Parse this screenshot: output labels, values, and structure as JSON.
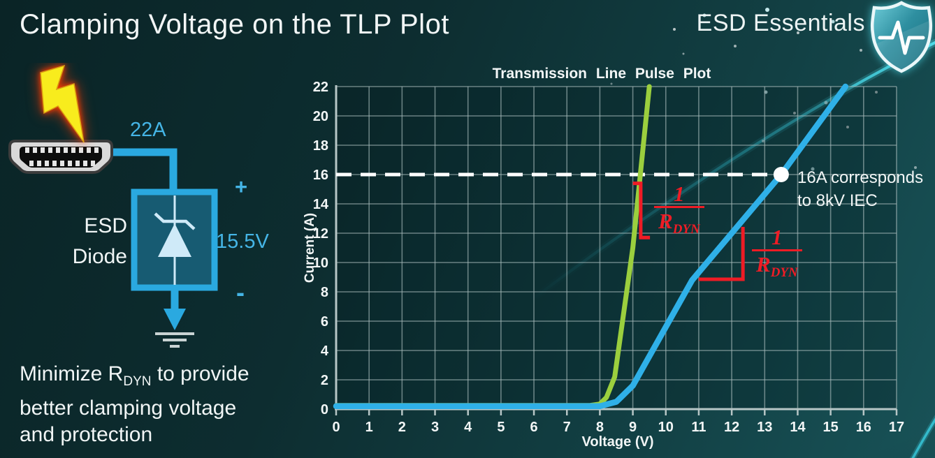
{
  "header": {
    "title": "Clamping Voltage on the TLP Plot",
    "brand": "ESD Essentials"
  },
  "circuit": {
    "surge_current_label": "22A",
    "plus_label": "+",
    "minus_label": "-",
    "clamp_voltage_label": "15.5V",
    "component_label_line1": "ESD",
    "component_label_line2": "Diode"
  },
  "footer": {
    "line1_pre": "Minimize R",
    "line1_sub": "DYN",
    "line1_post": " to provide",
    "line2": "better clamping voltage",
    "line3": "and protection"
  },
  "colors": {
    "background_dark": "#0a2426",
    "background_light": "#185257",
    "accent_cyan": "#45b5e6",
    "wire_cyan": "#2aa9e0",
    "curve_green": "#9bcf3e",
    "curve_blue": "#2fb0e8",
    "annotation_red": "#ee1c25",
    "grid_gray": "#a9bcbc",
    "text_white": "#f2f6f6"
  },
  "chart_data": {
    "type": "line",
    "title": "Transmission Line Pulse Plot",
    "xlabel": "Voltage (V)",
    "ylabel": "Current (A)",
    "xlim": [
      0,
      17
    ],
    "ylim": [
      0,
      22
    ],
    "x_tick_step": 1,
    "y_tick_step": 2,
    "grid": true,
    "legend": "none",
    "series": [
      {
        "name": "green_curve_low_rdyn",
        "color": "#9bcf3e",
        "points": [
          [
            0,
            0.25
          ],
          [
            7.7,
            0.25
          ],
          [
            8.0,
            0.35
          ],
          [
            8.2,
            0.8
          ],
          [
            8.45,
            2.2
          ],
          [
            9.0,
            11.0
          ],
          [
            9.5,
            22
          ]
        ]
      },
      {
        "name": "blue_curve_high_rdyn",
        "color": "#2fb0e8",
        "points": [
          [
            0,
            0.2
          ],
          [
            8.0,
            0.2
          ],
          [
            8.5,
            0.5
          ],
          [
            9.0,
            1.6
          ],
          [
            10.8,
            8.8
          ],
          [
            13.5,
            16
          ],
          [
            15.45,
            22
          ]
        ]
      }
    ],
    "reference_line": {
      "current": 16,
      "from_voltage": 0,
      "to_voltage": 13.5
    },
    "marker": {
      "voltage": 13.5,
      "current": 16,
      "label_line1": "16A corresponds",
      "label_line2": "to 8kV IEC"
    },
    "slope_annotations": [
      {
        "label_num": "1",
        "label_den_base": "R",
        "label_den_sub": "DYN",
        "bracket": [
          [
            9.0,
            15.4
          ],
          [
            9.24,
            15.4
          ],
          [
            9.24,
            11.7
          ],
          [
            9.52,
            11.7
          ]
        ]
      },
      {
        "label_num": "1",
        "label_den_base": "R",
        "label_den_sub": "DYN",
        "bracket": [
          [
            12.34,
            12.43
          ],
          [
            12.34,
            8.86
          ],
          [
            11.0,
            8.86
          ]
        ]
      }
    ]
  }
}
